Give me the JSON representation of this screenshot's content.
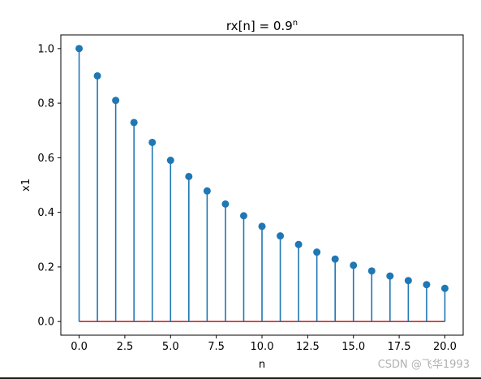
{
  "chart_data": {
    "type": "stem",
    "title": "rx[n] = 0.9",
    "title_superscript": "n",
    "xlabel": "n",
    "ylabel": "x1",
    "x": [
      0,
      1,
      2,
      3,
      4,
      5,
      6,
      7,
      8,
      9,
      10,
      11,
      12,
      13,
      14,
      15,
      16,
      17,
      18,
      19,
      20
    ],
    "values": [
      1.0,
      0.9,
      0.81,
      0.729,
      0.6561,
      0.5905,
      0.5314,
      0.4783,
      0.4305,
      0.3874,
      0.3487,
      0.3138,
      0.2824,
      0.2542,
      0.2288,
      0.2059,
      0.1853,
      0.1668,
      0.1501,
      0.1351,
      0.1216
    ],
    "xlim": [
      -1.0,
      21.0
    ],
    "ylim": [
      -0.05,
      1.05
    ],
    "xticks": [
      0.0,
      2.5,
      5.0,
      7.5,
      10.0,
      12.5,
      15.0,
      17.5,
      20.0
    ],
    "xtick_labels": [
      "0.0",
      "2.5",
      "5.0",
      "7.5",
      "10.0",
      "12.5",
      "15.0",
      "17.5",
      "20.0"
    ],
    "yticks": [
      0.0,
      0.2,
      0.4,
      0.6,
      0.8,
      1.0
    ],
    "ytick_labels": [
      "0.0",
      "0.2",
      "0.4",
      "0.6",
      "0.8",
      "1.0"
    ],
    "grid": false,
    "colors": {
      "stem": "#1f77b4",
      "marker": "#1f77b4",
      "baseline": "#d62728"
    }
  },
  "watermark": "CSDN @飞华1993"
}
